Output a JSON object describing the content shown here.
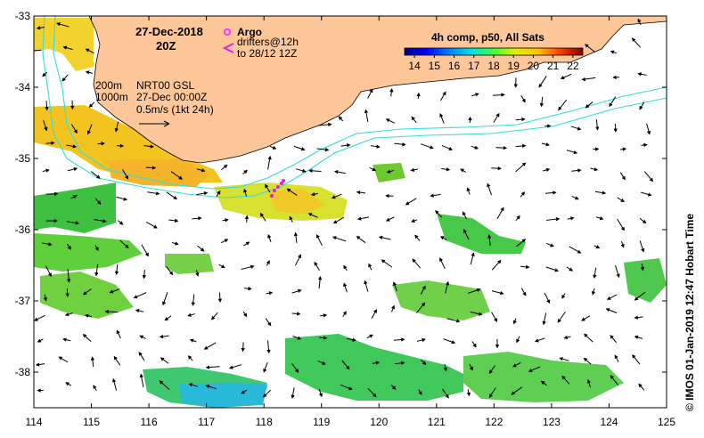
{
  "map": {
    "date_title": "27-Dec-2018",
    "time_title": "20Z",
    "argo_label": "Argo",
    "drifters_label": "drifters@12h",
    "drifters_to_label": "to 28/12 12Z",
    "iso200_label": "200m",
    "iso1000_label": "1000m",
    "product_label": "NRT00 GSL",
    "product_date_label": "27-Dec 00:00Z",
    "scale_label": "0.5m/s (1kt 24h)",
    "credit": "©  IMOS 01-Jan-2019 12:47 Hobart Time",
    "land_color": "#fdc79a",
    "isobath_color": "#33dddd",
    "argo_color": "#ff33ff",
    "drifter_color": "#dd22dd"
  },
  "colorbar": {
    "title": "4h comp, p50, All Sats",
    "ticks": [
      "14",
      "15",
      "16",
      "17",
      "18",
      "19",
      "20",
      "21",
      "22"
    ],
    "min": 13.5,
    "max": 22.5
  },
  "axes": {
    "x_ticks": [
      "114",
      "115",
      "116",
      "117",
      "118",
      "119",
      "120",
      "121",
      "122",
      "123",
      "124",
      "125"
    ],
    "y_ticks": [
      "-33",
      "-34",
      "-35",
      "-36",
      "-37",
      "-38"
    ],
    "lon_range": [
      114,
      125
    ],
    "lat_range": [
      -38.5,
      -33
    ]
  }
}
